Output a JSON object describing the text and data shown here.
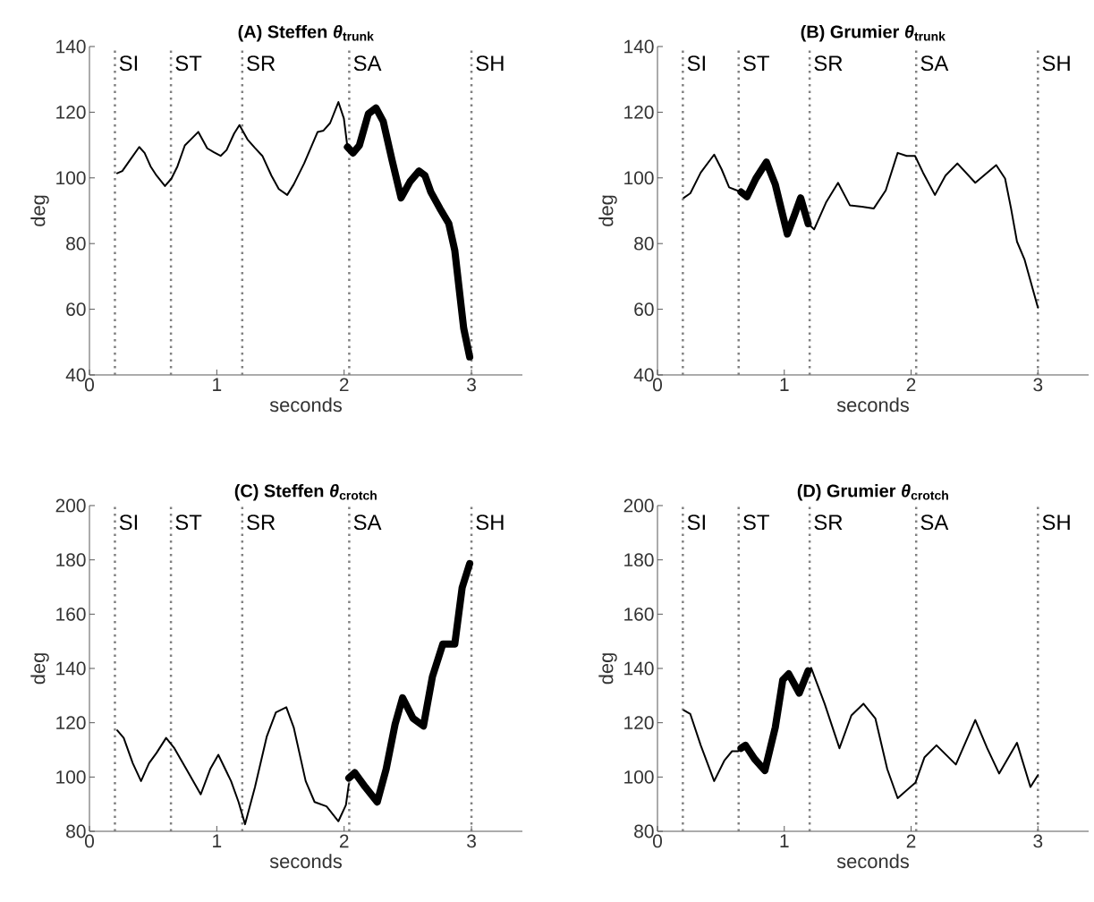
{
  "chart_data": [
    {
      "type": "line",
      "title": "(A) Steffen *θ*$_{trunk}$",
      "xlabel": "seconds",
      "ylabel": "deg",
      "xlim": [
        0,
        3.4
      ],
      "ylim": [
        40,
        140
      ],
      "xticks": [
        0,
        1,
        2,
        3
      ],
      "yticks": [
        40,
        60,
        80,
        100,
        120,
        140
      ],
      "series": [
        {
          "color": "#000000",
          "x": [
            0.218,
            0.258,
            0.316,
            0.391,
            0.433,
            0.48,
            0.527,
            0.593,
            0.644,
            0.691,
            0.749,
            0.796,
            0.855,
            0.925,
            0.977,
            1.03,
            1.077,
            1.136,
            1.178,
            1.241,
            1.3,
            1.358,
            1.429,
            1.487,
            1.553,
            1.604,
            1.686,
            1.792,
            1.838,
            1.89,
            1.955,
            1.998,
            2.026
          ],
          "values": [
            101.4,
            102.1,
            105.3,
            109.4,
            107.6,
            103.5,
            100.7,
            97.5,
            99.8,
            103.5,
            109.9,
            111.7,
            114.0,
            109.0,
            107.8,
            106.7,
            108.5,
            113.5,
            116.1,
            111.7,
            109.1,
            106.7,
            100.7,
            96.6,
            94.8,
            98.0,
            104.4,
            114.0,
            114.4,
            116.7,
            123.1,
            118.1,
            109.4
          ]
        },
        {
          "color": "#000000",
          "x": [
            2.026,
            2.07,
            2.12,
            2.19,
            2.25,
            2.307,
            2.377,
            2.447,
            2.518,
            2.588,
            2.635,
            2.681,
            2.752,
            2.822,
            2.869,
            2.904,
            2.939,
            2.986
          ],
          "values": [
            109.4,
            107.6,
            109.9,
            119.5,
            121.3,
            117.2,
            105.3,
            93.9,
            98.9,
            102.1,
            100.7,
            95.7,
            90.7,
            86.1,
            77.9,
            66.0,
            54.2,
            45.5
          ]
        }
      ],
      "ref_lines": [
        {
          "axis": "x",
          "value": 0.2,
          "label": "SI",
          "color": "#808080",
          "line_style": "dotted"
        },
        {
          "axis": "x",
          "value": 0.64,
          "label": "ST",
          "color": "#808080",
          "line_style": "dotted"
        },
        {
          "axis": "x",
          "value": 1.2,
          "label": "SR",
          "color": "#808080",
          "line_style": "dotted"
        },
        {
          "axis": "x",
          "value": 2.04,
          "label": "SA",
          "color": "#808080",
          "line_style": "dotted"
        },
        {
          "axis": "x",
          "value": 3.0,
          "label": "SH",
          "color": "#808080",
          "line_style": "dotted"
        }
      ]
    },
    {
      "type": "line",
      "title": "(B) Grumier *θ*$_{trunk}$",
      "xlabel": "seconds",
      "ylabel": "deg",
      "xlim": [
        0,
        3.4
      ],
      "ylim": [
        40,
        140
      ],
      "xticks": [
        0,
        1,
        2,
        3
      ],
      "yticks": [
        40,
        60,
        80,
        100,
        120,
        140
      ],
      "series": [
        {
          "color": "#000000",
          "x": [
            0.207,
            0.259,
            0.341,
            0.447,
            0.506,
            0.565,
            0.612,
            0.659,
            0.9,
            1.188,
            1.235,
            1.329,
            1.424,
            1.518,
            1.612,
            1.706,
            1.8,
            1.894,
            1.965,
            2.031,
            2.094,
            2.188,
            2.271,
            2.365,
            2.506,
            2.671,
            2.741,
            2.788,
            2.835,
            2.894,
            3.0
          ],
          "values": [
            93.9,
            95.3,
            101.6,
            107.1,
            102.6,
            97.1,
            96.4,
            95.7,
            null,
            86.1,
            84.3,
            92.5,
            98.5,
            91.6,
            91.2,
            90.7,
            96.2,
            107.6,
            106.7,
            106.7,
            101.6,
            94.8,
            100.7,
            104.4,
            98.5,
            103.9,
            99.8,
            90.7,
            80.6,
            75.2,
            60.5
          ]
        },
        {
          "color": "#000000",
          "x": [
            0.659,
            0.706,
            0.776,
            0.859,
            0.929,
            1.024,
            1.082,
            1.129,
            1.188
          ],
          "values": [
            95.7,
            94.3,
            99.8,
            104.8,
            98.0,
            82.9,
            88.9,
            93.9,
            86.1
          ]
        }
      ],
      "ref_lines": [
        {
          "axis": "x",
          "value": 0.2,
          "label": "SI",
          "color": "#808080",
          "line_style": "dotted"
        },
        {
          "axis": "x",
          "value": 0.64,
          "label": "ST",
          "color": "#808080",
          "line_style": "dotted"
        },
        {
          "axis": "x",
          "value": 1.2,
          "label": "SR",
          "color": "#808080",
          "line_style": "dotted"
        },
        {
          "axis": "x",
          "value": 2.04,
          "label": "SA",
          "color": "#808080",
          "line_style": "dotted"
        },
        {
          "axis": "x",
          "value": 3.0,
          "label": "SH",
          "color": "#808080",
          "line_style": "dotted"
        }
      ]
    },
    {
      "type": "line",
      "title": "(C) Steffen *θ*$_{crotch}$",
      "xlabel": "seconds",
      "ylabel": "deg",
      "xlim": [
        0,
        3.4
      ],
      "ylim": [
        80,
        200
      ],
      "xticks": [
        0,
        1,
        2,
        3
      ],
      "yticks": [
        80,
        100,
        120,
        140,
        160,
        180,
        200
      ],
      "series": [
        {
          "color": "#000000",
          "x": [
            0.218,
            0.269,
            0.34,
            0.405,
            0.468,
            0.527,
            0.602,
            0.667,
            0.761,
            0.874,
            0.948,
            1.012,
            1.112,
            1.171,
            1.222,
            1.3,
            1.393,
            1.464,
            1.546,
            1.604,
            1.698,
            1.768,
            1.862,
            1.955,
            2.014,
            2.037
          ],
          "values": [
            117.2,
            114.4,
            105.1,
            98.5,
            105.1,
            108.9,
            114.4,
            110.6,
            102.9,
            93.6,
            102.9,
            108.2,
            98.5,
            90.8,
            82.6,
            96.3,
            115.0,
            123.8,
            125.7,
            118.3,
            98.5,
            90.8,
            89.2,
            83.7,
            89.7,
            97.4
          ]
        },
        {
          "color": "#000000",
          "x": [
            2.037,
            2.084,
            2.166,
            2.26,
            2.33,
            2.4,
            2.459,
            2.541,
            2.623,
            2.693,
            2.775,
            2.869,
            2.927,
            2.986
          ],
          "values": [
            99.6,
            101.6,
            96.3,
            90.8,
            102.9,
            119.4,
            129.2,
            121.6,
            118.8,
            136.9,
            149.0,
            149.0,
            169.8,
            178.6
          ]
        }
      ],
      "ref_lines": [
        {
          "axis": "x",
          "value": 0.2,
          "label": "SI",
          "color": "#808080",
          "line_style": "dotted"
        },
        {
          "axis": "x",
          "value": 0.64,
          "label": "ST",
          "color": "#808080",
          "line_style": "dotted"
        },
        {
          "axis": "x",
          "value": 1.2,
          "label": "SR",
          "color": "#808080",
          "line_style": "dotted"
        },
        {
          "axis": "x",
          "value": 2.04,
          "label": "SA",
          "color": "#808080",
          "line_style": "dotted"
        },
        {
          "axis": "x",
          "value": 3.0,
          "label": "SH",
          "color": "#808080",
          "line_style": "dotted"
        }
      ]
    },
    {
      "type": "line",
      "title": "(D) Grumier *θ*$_{crotch}$",
      "xlabel": "seconds",
      "ylabel": "deg",
      "xlim": [
        0,
        3.4
      ],
      "ylim": [
        80,
        200
      ],
      "xticks": [
        0,
        1,
        2,
        3
      ],
      "yticks": [
        80,
        100,
        120,
        140,
        160,
        180,
        200
      ],
      "series": [
        {
          "color": "#000000",
          "x": [
            0.207,
            0.259,
            0.341,
            0.447,
            0.529,
            0.588,
            0.635,
            0.659,
            0.9,
            1.188,
            1.212,
            1.318,
            1.435,
            1.529,
            1.624,
            1.718,
            1.812,
            1.894,
            2.035,
            2.106,
            2.2,
            2.353,
            2.506,
            2.6,
            2.694,
            2.835,
            2.941,
            3.0
          ],
          "values": [
            124.6,
            123.2,
            111.7,
            98.5,
            106.2,
            109.5,
            109.5,
            110.6,
            null,
            139.1,
            140.2,
            127.0,
            110.6,
            122.7,
            127.0,
            121.6,
            102.9,
            92.2,
            98.0,
            107.3,
            111.7,
            104.6,
            121.0,
            110.6,
            101.3,
            112.6,
            96.3,
            100.7
          ]
        },
        {
          "color": "#000000",
          "x": [
            0.659,
            0.694,
            0.765,
            0.847,
            0.929,
            0.988,
            1.035,
            1.118,
            1.188
          ],
          "values": [
            110.6,
            111.7,
            106.7,
            102.4,
            118.3,
            135.8,
            138.0,
            130.9,
            139.1
          ]
        }
      ],
      "ref_lines": [
        {
          "axis": "x",
          "value": 0.2,
          "label": "SI",
          "color": "#808080",
          "line_style": "dotted"
        },
        {
          "axis": "x",
          "value": 0.64,
          "label": "ST",
          "color": "#808080",
          "line_style": "dotted"
        },
        {
          "axis": "x",
          "value": 1.2,
          "label": "SR",
          "color": "#808080",
          "line_style": "dotted"
        },
        {
          "axis": "x",
          "value": 2.04,
          "label": "SA",
          "color": "#808080",
          "line_style": "dotted"
        },
        {
          "axis": "x",
          "value": 3.0,
          "label": "SH",
          "color": "#808080",
          "line_style": "dotted"
        }
      ]
    }
  ]
}
